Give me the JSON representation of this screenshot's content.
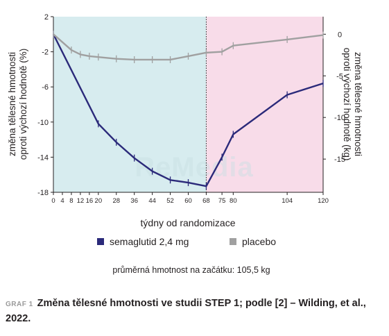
{
  "chart_data": {
    "type": "line",
    "title": "",
    "xlabel": "týdny od randomizace",
    "ylabel_left": "změna tělesné hmotnosti oproti výchozí hodnotě (%)",
    "ylabel_right": "změna tělesné hmotnosti oproti výchozí hodnotě (kg)",
    "x_ticks": [
      0,
      4,
      8,
      12,
      16,
      20,
      28,
      36,
      44,
      52,
      60,
      68,
      75,
      80,
      104,
      120
    ],
    "xlim": [
      0,
      120
    ],
    "ylim_left": [
      -18,
      2
    ],
    "y_ticks_left": [
      2,
      -2,
      -6,
      -10,
      -14,
      -18
    ],
    "ylim_right_kg": [
      -18.99,
      2.11
    ],
    "y_ticks_right": [
      0,
      -5,
      -10,
      -15
    ],
    "background_regions": [
      {
        "from": 0,
        "to": 68,
        "color": "#d7ecef"
      },
      {
        "from": 68,
        "to": 120,
        "color": "#f8dce9"
      }
    ],
    "divider_x": 68,
    "series": [
      {
        "name": "semaglutid 2,4 mg",
        "color": "#2b2a7a",
        "x": [
          0,
          20,
          28,
          36,
          44,
          52,
          60,
          68,
          75,
          80,
          104,
          120
        ],
        "y": [
          0,
          -10.2,
          -12.3,
          -14.1,
          -15.6,
          -16.6,
          -16.9,
          -17.3,
          -14.0,
          -11.4,
          -6.9,
          -5.6
        ]
      },
      {
        "name": "placebo",
        "color": "#a0a0a0",
        "x": [
          0,
          8,
          12,
          16,
          20,
          28,
          36,
          44,
          52,
          60,
          68,
          75,
          80,
          104,
          120
        ],
        "y": [
          0,
          -1.8,
          -2.3,
          -2.5,
          -2.6,
          -2.8,
          -2.9,
          -2.9,
          -2.9,
          -2.5,
          -2.1,
          -2.0,
          -1.3,
          -0.6,
          -0.1
        ]
      }
    ],
    "legend": [
      "semaglutid 2,4 mg",
      "placebo"
    ],
    "legend_position": "bottom",
    "note": "průměrná hmotnost na začátku: 105,5 kg"
  },
  "caption": {
    "label": "GRAF 1",
    "text": "Změna tělesné hmotnosti ve studii STEP 1; podle [2] – Wilding, et al., 2022."
  }
}
